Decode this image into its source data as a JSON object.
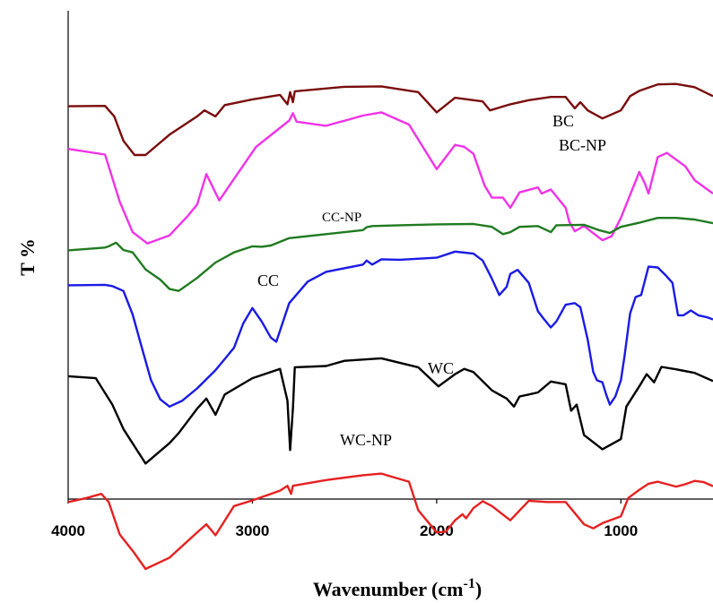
{
  "chart_data": {
    "type": "line",
    "title": "",
    "xlabel": "Wavenumber (cm",
    "xlabel_superscript": "-1",
    "xlabel_close": ")",
    "ylabel": "T %",
    "xlim": [
      4000,
      500
    ],
    "ylim": [
      0,
      100
    ],
    "x_reversed": true,
    "y_ticks_shown": false,
    "grid": false,
    "xticks": [
      4000,
      3000,
      2000,
      1000
    ],
    "xtick_labels": [
      "4000",
      "3000",
      "2000",
      "1000"
    ],
    "series": [
      {
        "name": "BC",
        "color": "#7a0c0c",
        "points": [
          [
            4000,
            87.5
          ],
          [
            3800,
            87.6
          ],
          [
            3750,
            85
          ],
          [
            3700,
            79
          ],
          [
            3640,
            75.5
          ],
          [
            3580,
            75.5
          ],
          [
            3450,
            80.5
          ],
          [
            3300,
            85
          ],
          [
            3260,
            86.5
          ],
          [
            3200,
            85
          ],
          [
            3150,
            87.8
          ],
          [
            3000,
            89.2
          ],
          [
            2850,
            90.3
          ],
          [
            2810,
            88
          ],
          [
            2795,
            91
          ],
          [
            2780,
            88.5
          ],
          [
            2770,
            91.2
          ],
          [
            2500,
            92.3
          ],
          [
            2300,
            92.4
          ],
          [
            2100,
            91
          ],
          [
            2000,
            86
          ],
          [
            1900,
            89.6
          ],
          [
            1800,
            89
          ],
          [
            1750,
            88.7
          ],
          [
            1710,
            86.5
          ],
          [
            1600,
            88
          ],
          [
            1500,
            89
          ],
          [
            1380,
            89.8
          ],
          [
            1300,
            89.8
          ],
          [
            1250,
            87
          ],
          [
            1220,
            88.5
          ],
          [
            1180,
            86.5
          ],
          [
            1100,
            84.5
          ],
          [
            1000,
            86.5
          ],
          [
            950,
            90
          ],
          [
            900,
            91.3
          ],
          [
            800,
            92.9
          ],
          [
            700,
            93
          ],
          [
            600,
            92.2
          ],
          [
            500,
            90
          ]
        ]
      },
      {
        "name": "BC-NP",
        "color": "#f032e8",
        "points": [
          [
            4000,
            77
          ],
          [
            3800,
            75.6
          ],
          [
            3720,
            64
          ],
          [
            3650,
            56.5
          ],
          [
            3570,
            53.7
          ],
          [
            3450,
            55.7
          ],
          [
            3350,
            60.5
          ],
          [
            3300,
            63.3
          ],
          [
            3250,
            70.8
          ],
          [
            3180,
            64.3
          ],
          [
            3100,
            69.6
          ],
          [
            2980,
            77.5
          ],
          [
            2800,
            84
          ],
          [
            2780,
            85.8
          ],
          [
            2760,
            83.7
          ],
          [
            2600,
            82.7
          ],
          [
            2400,
            85.2
          ],
          [
            2300,
            86
          ],
          [
            2150,
            83
          ],
          [
            2000,
            72
          ],
          [
            1900,
            78
          ],
          [
            1850,
            77.5
          ],
          [
            1800,
            75.8
          ],
          [
            1740,
            68
          ],
          [
            1700,
            65
          ],
          [
            1640,
            65
          ],
          [
            1600,
            62.5
          ],
          [
            1550,
            66.3
          ],
          [
            1450,
            67.5
          ],
          [
            1430,
            66
          ],
          [
            1380,
            67
          ],
          [
            1300,
            62.5
          ],
          [
            1280,
            59
          ],
          [
            1250,
            56.7
          ],
          [
            1200,
            58
          ],
          [
            1100,
            54.5
          ],
          [
            1050,
            55.5
          ],
          [
            1000,
            60
          ],
          [
            900,
            71.3
          ],
          [
            870,
            68.5
          ],
          [
            850,
            66
          ],
          [
            800,
            75
          ],
          [
            750,
            76
          ],
          [
            650,
            72.7
          ],
          [
            600,
            69.3
          ],
          [
            500,
            66
          ]
        ]
      },
      {
        "name": "CC-NP",
        "color": "#1f7a1f",
        "points": [
          [
            4000,
            52
          ],
          [
            3800,
            52.7
          ],
          [
            3780,
            53
          ],
          [
            3740,
            53.9
          ],
          [
            3700,
            52.1
          ],
          [
            3650,
            51.5
          ],
          [
            3580,
            47.3
          ],
          [
            3500,
            44.8
          ],
          [
            3450,
            42.5
          ],
          [
            3400,
            42
          ],
          [
            3300,
            45.2
          ],
          [
            3200,
            49
          ],
          [
            3100,
            51.5
          ],
          [
            3000,
            53
          ],
          [
            2950,
            52.9
          ],
          [
            2900,
            53.2
          ],
          [
            2800,
            55
          ],
          [
            2600,
            56
          ],
          [
            2400,
            57
          ],
          [
            2380,
            57.7
          ],
          [
            2350,
            58
          ],
          [
            2200,
            58.2
          ],
          [
            2000,
            58.4
          ],
          [
            1800,
            58.5
          ],
          [
            1700,
            57.8
          ],
          [
            1640,
            56
          ],
          [
            1600,
            56.5
          ],
          [
            1550,
            57.8
          ],
          [
            1450,
            58
          ],
          [
            1380,
            56.5
          ],
          [
            1350,
            58.2
          ],
          [
            1200,
            58.3
          ],
          [
            1120,
            57
          ],
          [
            1060,
            56.3
          ],
          [
            1000,
            57.8
          ],
          [
            900,
            58.8
          ],
          [
            800,
            60
          ],
          [
            700,
            60
          ],
          [
            600,
            59.6
          ],
          [
            500,
            58.7
          ]
        ]
      },
      {
        "name": "CC",
        "color": "#1a1ae6",
        "points": [
          [
            4000,
            43.4
          ],
          [
            3800,
            43.5
          ],
          [
            3760,
            43.2
          ],
          [
            3700,
            42
          ],
          [
            3650,
            36.2
          ],
          [
            3600,
            28
          ],
          [
            3550,
            20
          ],
          [
            3500,
            15.3
          ],
          [
            3450,
            13.5
          ],
          [
            3380,
            15
          ],
          [
            3300,
            18
          ],
          [
            3200,
            22.5
          ],
          [
            3100,
            28
          ],
          [
            3050,
            34
          ],
          [
            3000,
            37.8
          ],
          [
            2950,
            34.5
          ],
          [
            2900,
            30.5
          ],
          [
            2870,
            29.5
          ],
          [
            2800,
            39
          ],
          [
            2700,
            44.3
          ],
          [
            2600,
            46.7
          ],
          [
            2400,
            48.5
          ],
          [
            2380,
            49.5
          ],
          [
            2350,
            48.5
          ],
          [
            2300,
            49.8
          ],
          [
            2200,
            49.7
          ],
          [
            2000,
            50.2
          ],
          [
            1900,
            51.7
          ],
          [
            1800,
            51.2
          ],
          [
            1750,
            49.5
          ],
          [
            1700,
            45
          ],
          [
            1660,
            41
          ],
          [
            1620,
            43
          ],
          [
            1600,
            46.2
          ],
          [
            1560,
            47.2
          ],
          [
            1500,
            44
          ],
          [
            1450,
            37
          ],
          [
            1420,
            35.2
          ],
          [
            1380,
            33
          ],
          [
            1350,
            34.5
          ],
          [
            1300,
            38.6
          ],
          [
            1250,
            39
          ],
          [
            1220,
            38
          ],
          [
            1200,
            34
          ],
          [
            1180,
            30
          ],
          [
            1150,
            22
          ],
          [
            1130,
            20
          ],
          [
            1100,
            19.5
          ],
          [
            1080,
            16.5
          ],
          [
            1060,
            14
          ],
          [
            1030,
            16
          ],
          [
            1000,
            20
          ],
          [
            980,
            26
          ],
          [
            950,
            36.5
          ],
          [
            920,
            40.5
          ],
          [
            890,
            41
          ],
          [
            850,
            48
          ],
          [
            800,
            47.8
          ],
          [
            760,
            46
          ],
          [
            720,
            44
          ],
          [
            690,
            36
          ],
          [
            660,
            36
          ],
          [
            620,
            37.2
          ],
          [
            580,
            36
          ],
          [
            530,
            35.5
          ],
          [
            500,
            35
          ]
        ]
      },
      {
        "name": "WC",
        "color": "#000000",
        "points": [
          [
            4000,
            21
          ],
          [
            3850,
            20.5
          ],
          [
            3760,
            14
          ],
          [
            3700,
            8
          ],
          [
            3580,
            -0.5
          ],
          [
            3450,
            4.5
          ],
          [
            3400,
            7
          ],
          [
            3300,
            13
          ],
          [
            3250,
            15.5
          ],
          [
            3200,
            11.5
          ],
          [
            3150,
            16.5
          ],
          [
            3000,
            20.5
          ],
          [
            2850,
            22.8
          ],
          [
            2810,
            15
          ],
          [
            2795,
            2.8
          ],
          [
            2780,
            13
          ],
          [
            2770,
            23.2
          ],
          [
            2600,
            23.5
          ],
          [
            2500,
            24.8
          ],
          [
            2300,
            25.4
          ],
          [
            2100,
            23.2
          ],
          [
            1990,
            18.5
          ],
          [
            1900,
            21.5
          ],
          [
            1850,
            22.8
          ],
          [
            1800,
            22
          ],
          [
            1700,
            17.5
          ],
          [
            1660,
            16.5
          ],
          [
            1620,
            15.5
          ],
          [
            1580,
            13.5
          ],
          [
            1550,
            16
          ],
          [
            1500,
            16.5
          ],
          [
            1450,
            17
          ],
          [
            1380,
            19.7
          ],
          [
            1300,
            19
          ],
          [
            1270,
            12.5
          ],
          [
            1240,
            14
          ],
          [
            1200,
            6.5
          ],
          [
            1100,
            3
          ],
          [
            1000,
            5.5
          ],
          [
            970,
            13.5
          ],
          [
            900,
            18.5
          ],
          [
            860,
            21.5
          ],
          [
            820,
            19.5
          ],
          [
            780,
            23.3
          ],
          [
            700,
            22.7
          ],
          [
            600,
            21.8
          ],
          [
            500,
            19.8
          ]
        ]
      },
      {
        "name": "WC-NP",
        "color": "#e62020",
        "points": [
          [
            4000,
            -10
          ],
          [
            3900,
            -9
          ],
          [
            3820,
            -8
          ],
          [
            3780,
            -10
          ],
          [
            3720,
            -18
          ],
          [
            3650,
            -22
          ],
          [
            3580,
            -26.5
          ],
          [
            3450,
            -23.7
          ],
          [
            3300,
            -17.5
          ],
          [
            3250,
            -15.5
          ],
          [
            3200,
            -18.2
          ],
          [
            3100,
            -11
          ],
          [
            3000,
            -9.6
          ],
          [
            2850,
            -7.2
          ],
          [
            2810,
            -6
          ],
          [
            2790,
            -8
          ],
          [
            2780,
            -6
          ],
          [
            2600,
            -4.6
          ],
          [
            2400,
            -3.4
          ],
          [
            2300,
            -3
          ],
          [
            2150,
            -5
          ],
          [
            2100,
            -12
          ],
          [
            2000,
            -17.5
          ],
          [
            1950,
            -17.3
          ],
          [
            1900,
            -14.5
          ],
          [
            1860,
            -13
          ],
          [
            1840,
            -14
          ],
          [
            1800,
            -11.5
          ],
          [
            1750,
            -9.8
          ],
          [
            1700,
            -11
          ],
          [
            1600,
            -14.5
          ],
          [
            1500,
            -9.7
          ],
          [
            1400,
            -10
          ],
          [
            1300,
            -10
          ],
          [
            1200,
            -15.5
          ],
          [
            1150,
            -16.5
          ],
          [
            1100,
            -15.2
          ],
          [
            1000,
            -13.5
          ],
          [
            960,
            -9
          ],
          [
            900,
            -7
          ],
          [
            850,
            -5.5
          ],
          [
            800,
            -5
          ],
          [
            700,
            -6.2
          ],
          [
            650,
            -5.6
          ],
          [
            600,
            -4.8
          ],
          [
            550,
            -5.1
          ],
          [
            500,
            -6.1
          ]
        ]
      }
    ],
    "annotations": [
      "BC",
      "BC-NP",
      "CC-NP",
      "CC",
      "WC",
      "WC-NP"
    ]
  }
}
